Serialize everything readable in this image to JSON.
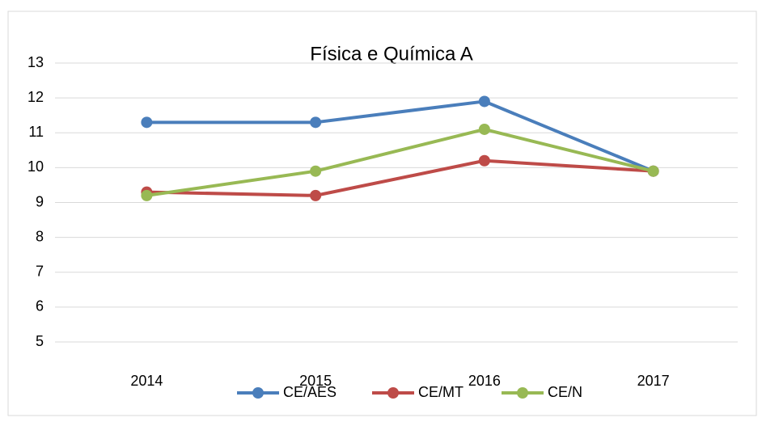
{
  "chart_data": {
    "type": "line",
    "title": "Física e Química A",
    "categories": [
      "2014",
      "2015",
      "2016",
      "2017"
    ],
    "series": [
      {
        "name": "CE/AES",
        "color": "#4a7ebb",
        "values": [
          11.3,
          11.3,
          11.9,
          9.9
        ]
      },
      {
        "name": "CE/MT",
        "color": "#be4b48",
        "values": [
          9.3,
          9.2,
          10.2,
          9.9
        ]
      },
      {
        "name": "CE/N",
        "color": "#98b954",
        "values": [
          9.2,
          9.9,
          11.1,
          9.9
        ]
      }
    ],
    "ylim": [
      5,
      13
    ],
    "yticks": [
      5,
      6,
      7,
      8,
      9,
      10,
      11,
      12,
      13
    ],
    "grid": true,
    "legend": "bottom"
  }
}
